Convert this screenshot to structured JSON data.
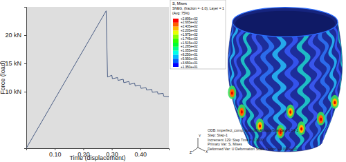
{
  "chart_data": [
    {
      "type": "line",
      "x_label": "Time (displacement)",
      "y_label": "Force (load)",
      "xlim": [
        0,
        0.5
      ],
      "xticks": [
        {
          "value": 0.1,
          "label": "0.10"
        },
        {
          "value": 0.2,
          "label": "0.20"
        },
        {
          "value": 0.3,
          "label": "0.30"
        },
        {
          "value": 0.4,
          "label": "0.40"
        }
      ],
      "ylim": [
        0,
        25
      ],
      "yticks": [
        {
          "value": 10,
          "label": "10 kN"
        },
        {
          "value": 15,
          "label": "15 kN"
        },
        {
          "value": 20,
          "label": "20 kN"
        }
      ],
      "x": [
        0,
        0.28,
        0.285,
        0.3,
        0.302,
        0.32,
        0.322,
        0.34,
        0.342,
        0.36,
        0.362,
        0.38,
        0.382,
        0.4,
        0.402,
        0.42,
        0.422,
        0.44,
        0.442,
        0.46,
        0.462,
        0.48,
        0.482,
        0.5
      ],
      "series": [
        {
          "color": "#3a4f7a",
          "values": [
            0,
            24.3,
            12.6,
            12.9,
            12.3,
            12.5,
            12.0,
            12.2,
            11.6,
            11.8,
            11.3,
            11.5,
            11.0,
            11.1,
            10.6,
            10.7,
            10.3,
            10.4,
            9.9,
            10.0,
            9.6,
            9.7,
            9.2,
            9.1
          ]
        }
      ]
    },
    {
      "type": "contour",
      "title": "S, Mises",
      "subtitle": "SNEG, (fraction = -1.0), Layer = 1",
      "averaging": "(Avg: 75%)",
      "colorbar_ticks": [
        {
          "value": 289.5,
          "label": "+2.895e+02"
        },
        {
          "value": 266.5,
          "label": "+2.665e+02"
        },
        {
          "value": 243.5,
          "label": "+2.435e+02"
        },
        {
          "value": 220.5,
          "label": "+2.205e+02"
        },
        {
          "value": 197.5,
          "label": "+1.975e+02"
        },
        {
          "value": 174.5,
          "label": "+1.745e+02"
        },
        {
          "value": 151.5,
          "label": "+1.515e+02"
        },
        {
          "value": 128.5,
          "label": "+1.285e+02"
        },
        {
          "value": 105.5,
          "label": "+1.055e+02"
        },
        {
          "value": 82.5,
          "label": "+8.250e+01"
        },
        {
          "value": 59.5,
          "label": "+5.950e+01"
        },
        {
          "value": 36.5,
          "label": "+3.650e+01"
        },
        {
          "value": 13.5,
          "label": "+1.350e+01"
        }
      ],
      "colors": [
        "#ff0000",
        "#ff5d00",
        "#ffb900",
        "#e8ff00",
        "#8bff00",
        "#2eff00",
        "#00ff2e",
        "#00ff8b",
        "#00ffe8",
        "#00b9ff",
        "#005dff",
        "#0000ff"
      ],
      "annotations": [
        "ODB: imperfect_comp_stab.odb    Abaqus/Standard 6.14-1",
        "Step: Step-1",
        "Increment    129: Step Time =    0.3000",
        "Primary Var: S, Mises",
        "Deformed Var: U   Deformation Scale Factor: +1.000e+01"
      ],
      "triad": [
        "Y",
        "Z",
        "X"
      ]
    }
  ]
}
